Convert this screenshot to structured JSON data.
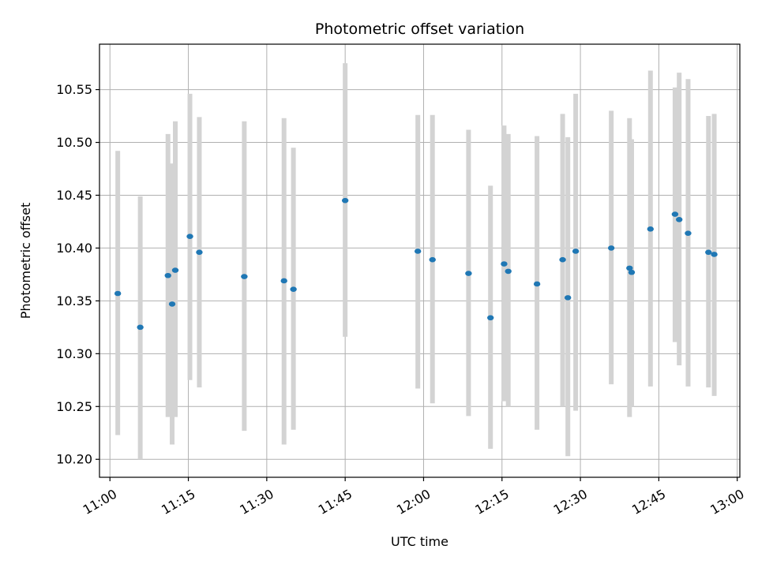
{
  "chart_data": {
    "type": "scatter",
    "title": "Photometric offset variation",
    "xlabel": "UTC time",
    "ylabel": "Photometric offset",
    "x_unit": "UTC time (HH:MM)",
    "xlim": [
      "10:58",
      "13:00.5"
    ],
    "ylim": [
      10.183,
      10.593
    ],
    "xticks": [
      "11:00",
      "11:15",
      "11:30",
      "11:45",
      "12:00",
      "12:15",
      "12:30",
      "12:45",
      "13:00"
    ],
    "yticks": [
      "10.20",
      "10.25",
      "10.30",
      "10.35",
      "10.40",
      "10.45",
      "10.50",
      "10.55"
    ],
    "grid": true,
    "colors": {
      "point": "#1f77b4",
      "errorbar": "#d3d3d3",
      "grid": "#b0b0b0"
    },
    "series": [
      {
        "points": [
          {
            "x": "11:01.5",
            "y": 10.357,
            "ylow": 10.223,
            "yhigh": 10.492
          },
          {
            "x": "11:05.8",
            "y": 10.325,
            "ylow": 10.2,
            "yhigh": 10.449
          },
          {
            "x": "11:11.1",
            "y": 10.374,
            "ylow": 10.24,
            "yhigh": 10.508
          },
          {
            "x": "11:11.9",
            "y": 10.347,
            "ylow": 10.214,
            "yhigh": 10.48
          },
          {
            "x": "11:12.5",
            "y": 10.379,
            "ylow": 10.24,
            "yhigh": 10.52
          },
          {
            "x": "11:15.3",
            "y": 10.411,
            "ylow": 10.275,
            "yhigh": 10.546
          },
          {
            "x": "11:17.1",
            "y": 10.396,
            "ylow": 10.268,
            "yhigh": 10.524
          },
          {
            "x": "11:25.7",
            "y": 10.373,
            "ylow": 10.227,
            "yhigh": 10.52
          },
          {
            "x": "11:33.3",
            "y": 10.369,
            "ylow": 10.214,
            "yhigh": 10.523
          },
          {
            "x": "11:35.1",
            "y": 10.361,
            "ylow": 10.228,
            "yhigh": 10.495
          },
          {
            "x": "11:45.0",
            "y": 10.445,
            "ylow": 10.316,
            "yhigh": 10.575
          },
          {
            "x": "11:58.9",
            "y": 10.397,
            "ylow": 10.267,
            "yhigh": 10.526
          },
          {
            "x": "12:01.7",
            "y": 10.389,
            "ylow": 10.253,
            "yhigh": 10.526
          },
          {
            "x": "12:08.6",
            "y": 10.376,
            "ylow": 10.241,
            "yhigh": 10.512
          },
          {
            "x": "12:12.8",
            "y": 10.334,
            "ylow": 10.21,
            "yhigh": 10.459
          },
          {
            "x": "12:15.4",
            "y": 10.385,
            "ylow": 10.255,
            "yhigh": 10.516
          },
          {
            "x": "12:16.2",
            "y": 10.378,
            "ylow": 10.25,
            "yhigh": 10.508
          },
          {
            "x": "12:21.7",
            "y": 10.366,
            "ylow": 10.228,
            "yhigh": 10.506
          },
          {
            "x": "12:26.6",
            "y": 10.389,
            "ylow": 10.25,
            "yhigh": 10.527
          },
          {
            "x": "12:27.6",
            "y": 10.353,
            "ylow": 10.203,
            "yhigh": 10.505
          },
          {
            "x": "12:29.1",
            "y": 10.397,
            "ylow": 10.246,
            "yhigh": 10.546
          },
          {
            "x": "12:35.9",
            "y": 10.4,
            "ylow": 10.271,
            "yhigh": 10.53
          },
          {
            "x": "12:39.4",
            "y": 10.381,
            "ylow": 10.24,
            "yhigh": 10.523
          },
          {
            "x": "12:39.8",
            "y": 10.377,
            "ylow": 10.25,
            "yhigh": 10.503
          },
          {
            "x": "12:43.4",
            "y": 10.418,
            "ylow": 10.269,
            "yhigh": 10.568
          },
          {
            "x": "12:48.1",
            "y": 10.432,
            "ylow": 10.311,
            "yhigh": 10.552
          },
          {
            "x": "12:48.9",
            "y": 10.427,
            "ylow": 10.289,
            "yhigh": 10.566
          },
          {
            "x": "12:50.6",
            "y": 10.414,
            "ylow": 10.269,
            "yhigh": 10.56
          },
          {
            "x": "12:54.5",
            "y": 10.396,
            "ylow": 10.268,
            "yhigh": 10.525
          },
          {
            "x": "12:55.6",
            "y": 10.394,
            "ylow": 10.26,
            "yhigh": 10.527
          }
        ]
      }
    ]
  }
}
